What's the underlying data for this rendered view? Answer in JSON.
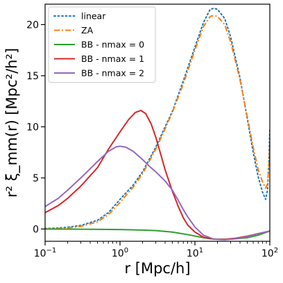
{
  "chart_data": {
    "type": "line",
    "title": "",
    "xlabel": "r [Mpc/h]",
    "ylabel": "r² ξ_mm(r) [Mpc²/h²]",
    "xscale": "log",
    "xlim": [
      0.1,
      100
    ],
    "ylim": [
      -1.2,
      22
    ],
    "x_ticks": [
      {
        "value": 0.1,
        "base": "10",
        "exp": "−1"
      },
      {
        "value": 1,
        "base": "10",
        "exp": "0"
      },
      {
        "value": 10,
        "base": "10",
        "exp": "1"
      },
      {
        "value": 100,
        "base": "10",
        "exp": "2"
      }
    ],
    "y_ticks": [
      {
        "value": 0,
        "label": "0"
      },
      {
        "value": 5,
        "label": "5"
      },
      {
        "value": 10,
        "label": "10"
      },
      {
        "value": 15,
        "label": "15"
      },
      {
        "value": 20,
        "label": "20"
      }
    ],
    "grid": false,
    "legend_position": "top-left",
    "series": [
      {
        "name": "linear",
        "color": "#1f77b4",
        "style": "dotted",
        "points": [
          [
            0.1,
            0.05
          ],
          [
            0.15,
            0.1
          ],
          [
            0.2,
            0.18
          ],
          [
            0.3,
            0.35
          ],
          [
            0.5,
            0.85
          ],
          [
            0.7,
            1.6
          ],
          [
            1,
            2.9
          ],
          [
            1.5,
            4.3
          ],
          [
            2,
            5.6
          ],
          [
            3,
            8.0
          ],
          [
            4,
            10.0
          ],
          [
            5,
            11.5
          ],
          [
            7,
            14.5
          ],
          [
            10,
            17.8
          ],
          [
            13,
            20.2
          ],
          [
            16,
            21.5
          ],
          [
            18,
            21.6
          ],
          [
            20,
            21.5
          ],
          [
            25,
            20.6
          ],
          [
            30,
            18.8
          ],
          [
            40,
            14.8
          ],
          [
            50,
            10.8
          ],
          [
            60,
            7.5
          ],
          [
            70,
            5.1
          ],
          [
            80,
            3.6
          ],
          [
            88,
            2.9
          ],
          [
            93,
            3.8
          ],
          [
            97,
            6.5
          ],
          [
            100,
            9.8
          ]
        ]
      },
      {
        "name": "ZA",
        "color": "#ff7f0e",
        "style": "dashdot",
        "points": [
          [
            0.1,
            0.0
          ],
          [
            0.15,
            0.05
          ],
          [
            0.2,
            0.1
          ],
          [
            0.3,
            0.25
          ],
          [
            0.5,
            0.7
          ],
          [
            0.7,
            1.4
          ],
          [
            1,
            2.6
          ],
          [
            1.5,
            4.1
          ],
          [
            2,
            5.4
          ],
          [
            3,
            7.8
          ],
          [
            4,
            9.8
          ],
          [
            5,
            11.4
          ],
          [
            7,
            14.2
          ],
          [
            10,
            17.5
          ],
          [
            13,
            19.8
          ],
          [
            16,
            20.8
          ],
          [
            18,
            20.9
          ],
          [
            20,
            20.8
          ],
          [
            25,
            20.0
          ],
          [
            30,
            18.3
          ],
          [
            40,
            14.6
          ],
          [
            50,
            11.0
          ],
          [
            60,
            8.0
          ],
          [
            70,
            5.8
          ],
          [
            80,
            4.6
          ],
          [
            88,
            4.0
          ],
          [
            93,
            4.4
          ],
          [
            97,
            6.0
          ],
          [
            100,
            8.5
          ]
        ]
      },
      {
        "name": "BB - nmax = 0",
        "color": "#2ca02c",
        "style": "solid",
        "points": [
          [
            0.1,
            0.0
          ],
          [
            0.3,
            -0.02
          ],
          [
            1,
            -0.05
          ],
          [
            2,
            -0.1
          ],
          [
            3,
            -0.15
          ],
          [
            5,
            -0.3
          ],
          [
            8,
            -0.55
          ],
          [
            12,
            -0.8
          ],
          [
            16,
            -0.95
          ],
          [
            20,
            -1.0
          ],
          [
            30,
            -1.0
          ],
          [
            50,
            -0.85
          ],
          [
            70,
            -0.6
          ],
          [
            100,
            -0.2
          ]
        ]
      },
      {
        "name": "BB - nmax = 1",
        "color": "#d62728",
        "style": "solid",
        "points": [
          [
            0.1,
            1.6
          ],
          [
            0.15,
            2.3
          ],
          [
            0.2,
            3.0
          ],
          [
            0.3,
            4.2
          ],
          [
            0.5,
            6.0
          ],
          [
            0.7,
            7.8
          ],
          [
            1,
            9.5
          ],
          [
            1.3,
            10.7
          ],
          [
            1.6,
            11.4
          ],
          [
            1.9,
            11.6
          ],
          [
            2.2,
            11.3
          ],
          [
            2.6,
            10.3
          ],
          [
            3,
            9.0
          ],
          [
            3.5,
            7.3
          ],
          [
            4,
            5.8
          ],
          [
            5,
            3.7
          ],
          [
            6,
            2.2
          ],
          [
            7,
            1.1
          ],
          [
            8,
            0.4
          ],
          [
            10,
            -0.3
          ],
          [
            13,
            -0.8
          ],
          [
            18,
            -1.0
          ],
          [
            25,
            -1.0
          ],
          [
            35,
            -0.9
          ],
          [
            50,
            -0.7
          ],
          [
            70,
            -0.45
          ],
          [
            100,
            -0.2
          ]
        ]
      },
      {
        "name": "BB - nmax = 2",
        "color": "#9467bd",
        "style": "solid",
        "points": [
          [
            0.1,
            2.2
          ],
          [
            0.15,
            3.0
          ],
          [
            0.2,
            3.8
          ],
          [
            0.3,
            5.0
          ],
          [
            0.5,
            6.6
          ],
          [
            0.7,
            7.6
          ],
          [
            0.9,
            8.05
          ],
          [
            1,
            8.1
          ],
          [
            1.2,
            8.0
          ],
          [
            1.5,
            7.6
          ],
          [
            2,
            6.8
          ],
          [
            2.5,
            6.1
          ],
          [
            3,
            5.6
          ],
          [
            4,
            4.7
          ],
          [
            5,
            3.8
          ],
          [
            6,
            2.8
          ],
          [
            7,
            1.9
          ],
          [
            8,
            1.2
          ],
          [
            10,
            0.2
          ],
          [
            13,
            -0.6
          ],
          [
            18,
            -1.0
          ],
          [
            25,
            -1.05
          ],
          [
            35,
            -0.95
          ],
          [
            50,
            -0.75
          ],
          [
            70,
            -0.45
          ],
          [
            100,
            -0.2
          ]
        ]
      }
    ]
  }
}
